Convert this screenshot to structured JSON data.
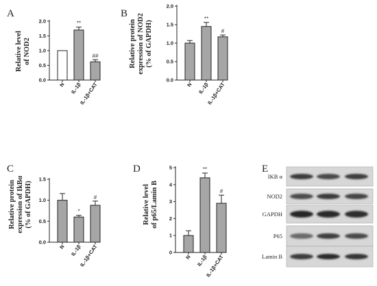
{
  "chart_data": [
    {
      "type": "bar",
      "panel": "A",
      "ylabel_lines": [
        "Relative level",
        "of NOD2"
      ],
      "categories": [
        "N",
        "IL-1β",
        "IL-1β+CAT"
      ],
      "values": [
        1.0,
        1.7,
        0.62
      ],
      "errors": [
        0.0,
        0.1,
        0.07
      ],
      "significance": [
        "",
        "**",
        "##"
      ],
      "ylim": [
        0,
        2.0
      ],
      "yticks": [
        "0.0",
        "0.5",
        "1.0",
        "1.5",
        "2.0"
      ],
      "bar_colors": [
        "#ffffff",
        "#a6a6a6",
        "#a6a6a6"
      ]
    },
    {
      "type": "bar",
      "panel": "B",
      "ylabel_lines": [
        "Relative protein",
        "expression of NOD2",
        "(% of GAPDH)"
      ],
      "categories": [
        "N",
        "IL-1β",
        "IL-1β+CAT"
      ],
      "values": [
        1.0,
        1.45,
        1.17
      ],
      "errors": [
        0.07,
        0.11,
        0.05
      ],
      "significance": [
        "",
        "**",
        "#"
      ],
      "ylim": [
        0,
        2.0
      ],
      "yticks": [
        "0.0",
        "0.5",
        "1.0",
        "1.5",
        "2.0"
      ],
      "bar_colors": [
        "#a6a6a6",
        "#a6a6a6",
        "#a6a6a6"
      ]
    },
    {
      "type": "bar",
      "panel": "C",
      "ylabel_lines": [
        "Relative protein",
        "expression of IkBα",
        "(% of GAPDH)"
      ],
      "categories": [
        "N",
        "IL-1β",
        "IL-1β+CAT"
      ],
      "values": [
        1.0,
        0.6,
        0.88
      ],
      "errors": [
        0.16,
        0.04,
        0.1
      ],
      "significance": [
        "",
        "*",
        "#"
      ],
      "ylim": [
        0,
        1.5
      ],
      "yticks": [
        "0.0",
        "0.5",
        "1.0",
        "1.5"
      ],
      "bar_colors": [
        "#a6a6a6",
        "#a6a6a6",
        "#a6a6a6"
      ]
    },
    {
      "type": "bar",
      "panel": "D",
      "ylabel_lines": [
        "Relative level",
        "of p65/Lamin B"
      ],
      "categories": [
        "N",
        "IL-1β",
        "IL-1β+CAT"
      ],
      "values": [
        1.0,
        4.4,
        2.9
      ],
      "errors": [
        0.28,
        0.28,
        0.48
      ],
      "significance": [
        "",
        "**",
        "#"
      ],
      "ylim": [
        0,
        5
      ],
      "yticks": [
        "0",
        "1",
        "2",
        "3",
        "4",
        "5"
      ],
      "bar_colors": [
        "#a6a6a6",
        "#a6a6a6",
        "#a6a6a6"
      ]
    }
  ],
  "blot": {
    "panel": "E",
    "rows": [
      "IKB α",
      "NOD2",
      "GAPDH",
      "P65",
      "Lamin B"
    ]
  }
}
